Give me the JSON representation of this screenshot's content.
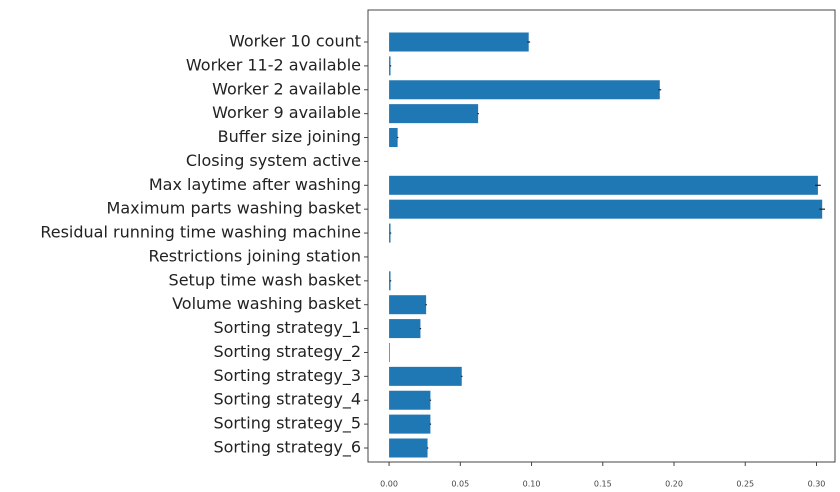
{
  "chart_data": {
    "type": "barh",
    "categories": [
      "Worker 10 count",
      "Worker 11-2 available",
      "Worker 2 available",
      "Worker 9 available",
      "Buffer size joining",
      "Closing system active",
      "Max laytime after washing",
      "Maximum parts washing basket",
      "Residual running time washing machine",
      "Restrictions joining station",
      "Setup time wash basket",
      "Volume washing basket",
      "Sorting strategy_1",
      "Sorting strategy_2",
      "Sorting strategy_3",
      "Sorting strategy_4",
      "Sorting strategy_5",
      "Sorting strategy_6"
    ],
    "values": [
      0.098,
      0.001,
      0.19,
      0.0625,
      0.006,
      0,
      0.301,
      0.304,
      0.001,
      0,
      0.001,
      0.026,
      0.022,
      0.0005,
      0.051,
      0.029,
      0.029,
      0.027
    ],
    "errors": [
      0.001,
      0.0005,
      0.001,
      0.0005,
      0.0005,
      0,
      0.002,
      0.002,
      0.0005,
      0,
      0.0005,
      0.0005,
      0.0005,
      0,
      0.0005,
      0.0005,
      0.0005,
      0.0005
    ],
    "color": "#1f77b4",
    "xlim": [
      -0.0148,
      0.313
    ],
    "xticks": [
      {
        "value": 0,
        "label": "0.00"
      },
      {
        "value": 0.05,
        "label": "0.05"
      },
      {
        "value": 0.1,
        "label": "0.10"
      },
      {
        "value": 0.15,
        "label": "0.15"
      },
      {
        "value": 0.2,
        "label": "0.20"
      },
      {
        "value": 0.25,
        "label": "0.25"
      },
      {
        "value": 0.3,
        "label": "0.30"
      }
    ]
  }
}
